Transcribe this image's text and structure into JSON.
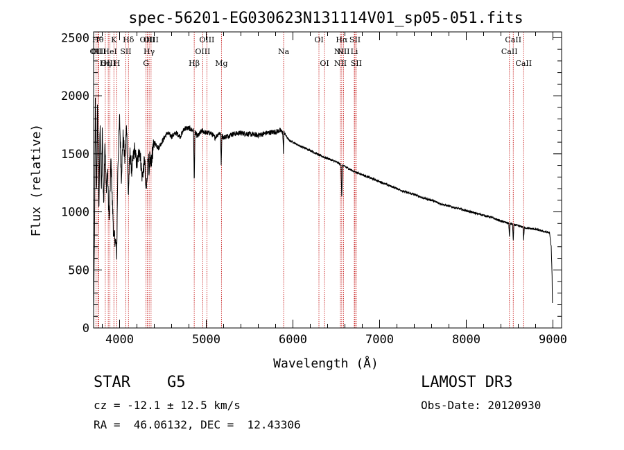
{
  "chart_data": {
    "type": "line",
    "title": "spec-56201-EG030623N131114V01_sp05-051.fits",
    "xlabel": "Wavelength (Å)",
    "ylabel": "Flux (relative)",
    "xlim": [
      3700,
      9100
    ],
    "ylim": [
      0,
      2550
    ],
    "xticks": [
      4000,
      5000,
      6000,
      7000,
      8000,
      9000
    ],
    "yticks": [
      0,
      500,
      1000,
      1500,
      2000,
      2500
    ],
    "grid": false,
    "series": [
      {
        "name": "spectrum",
        "profile": [
          [
            3700,
            150
          ],
          [
            3710,
            750
          ],
          [
            3720,
            1950
          ],
          [
            3735,
            1100
          ],
          [
            3745,
            1980
          ],
          [
            3760,
            1000
          ],
          [
            3775,
            1750
          ],
          [
            3790,
            1150
          ],
          [
            3800,
            1700
          ],
          [
            3815,
            1050
          ],
          [
            3830,
            1620
          ],
          [
            3845,
            1200
          ],
          [
            3860,
            1350
          ],
          [
            3880,
            900
          ],
          [
            3900,
            1450
          ],
          [
            3915,
            1100
          ],
          [
            3930,
            850
          ],
          [
            3950,
            750
          ],
          [
            3965,
            700
          ],
          [
            3980,
            1400
          ],
          [
            4000,
            1800
          ],
          [
            4020,
            1300
          ],
          [
            4040,
            1650
          ],
          [
            4060,
            1450
          ],
          [
            4080,
            1750
          ],
          [
            4100,
            1200
          ],
          [
            4120,
            1500
          ],
          [
            4140,
            1350
          ],
          [
            4170,
            1550
          ],
          [
            4200,
            1400
          ],
          [
            4230,
            1550
          ],
          [
            4260,
            1300
          ],
          [
            4290,
            1450
          ],
          [
            4310,
            1200
          ],
          [
            4330,
            1500
          ],
          [
            4360,
            1420
          ],
          [
            4400,
            1600
          ],
          [
            4450,
            1550
          ],
          [
            4500,
            1620
          ],
          [
            4550,
            1680
          ],
          [
            4600,
            1650
          ],
          [
            4650,
            1680
          ],
          [
            4700,
            1650
          ],
          [
            4750,
            1720
          ],
          [
            4800,
            1720
          ],
          [
            4850,
            1700
          ],
          [
            4900,
            1650
          ],
          [
            4950,
            1700
          ],
          [
            5000,
            1680
          ],
          [
            5050,
            1680
          ],
          [
            5100,
            1640
          ],
          [
            5150,
            1680
          ],
          [
            5200,
            1640
          ],
          [
            5300,
            1670
          ],
          [
            5400,
            1680
          ],
          [
            5500,
            1670
          ],
          [
            5600,
            1660
          ],
          [
            5700,
            1680
          ],
          [
            5800,
            1690
          ],
          [
            5850,
            1700
          ],
          [
            5900,
            1680
          ],
          [
            5950,
            1620
          ],
          [
            6000,
            1600
          ],
          [
            6100,
            1560
          ],
          [
            6200,
            1530
          ],
          [
            6300,
            1490
          ],
          [
            6400,
            1460
          ],
          [
            6500,
            1430
          ],
          [
            6600,
            1390
          ],
          [
            6700,
            1350
          ],
          [
            6800,
            1320
          ],
          [
            6900,
            1290
          ],
          [
            7000,
            1260
          ],
          [
            7100,
            1230
          ],
          [
            7200,
            1200
          ],
          [
            7300,
            1170
          ],
          [
            7400,
            1150
          ],
          [
            7500,
            1120
          ],
          [
            7600,
            1100
          ],
          [
            7700,
            1070
          ],
          [
            7800,
            1050
          ],
          [
            7900,
            1030
          ],
          [
            8000,
            1010
          ],
          [
            8100,
            990
          ],
          [
            8200,
            970
          ],
          [
            8300,
            950
          ],
          [
            8400,
            920
          ],
          [
            8500,
            900
          ],
          [
            8600,
            880
          ],
          [
            8700,
            860
          ],
          [
            8800,
            850
          ],
          [
            8900,
            830
          ],
          [
            8960,
            820
          ],
          [
            8980,
            700
          ],
          [
            8990,
            450
          ],
          [
            8995,
            150
          ]
        ],
        "absorption_dips": [
          {
            "wavelength": 3934,
            "flux": 750
          },
          {
            "wavelength": 3968,
            "flux": 700
          },
          {
            "wavelength": 4101,
            "flux": 1150
          },
          {
            "wavelength": 4300,
            "flux": 1180
          },
          {
            "wavelength": 4340,
            "flux": 1250
          },
          {
            "wavelength": 4861,
            "flux": 1230
          },
          {
            "wavelength": 5172,
            "flux": 1400
          },
          {
            "wavelength": 5890,
            "flux": 1520
          },
          {
            "wavelength": 6563,
            "flux": 1100
          },
          {
            "wavelength": 8498,
            "flux": 780
          },
          {
            "wavelength": 8542,
            "flux": 750
          },
          {
            "wavelength": 8662,
            "flux": 760
          }
        ]
      }
    ],
    "line_markers": [
      {
        "label": "OII",
        "wavelength": 3727,
        "row": 2
      },
      {
        "label": "Hθ",
        "wavelength": 3750,
        "row": 1
      },
      {
        "label": "OIII",
        "wavelength": 3760,
        "row": 2
      },
      {
        "label": "Hη",
        "wavelength": 3835,
        "row": 3
      },
      {
        "label": "OIII",
        "wavelength": 3869,
        "row": 3
      },
      {
        "label": "HeI",
        "wavelength": 3889,
        "row": 2
      },
      {
        "label": "K",
        "wavelength": 3934,
        "row": 1
      },
      {
        "label": "H",
        "wavelength": 3968,
        "row": 3
      },
      {
        "label": "SII",
        "wavelength": 4072,
        "row": 2
      },
      {
        "label": "Hδ",
        "wavelength": 4102,
        "row": 1
      },
      {
        "label": "G",
        "wavelength": 4305,
        "row": 3
      },
      {
        "label": "OIII",
        "wavelength": 4320,
        "row": 1
      },
      {
        "label": "Hγ",
        "wavelength": 4341,
        "row": 2
      },
      {
        "label": "OIII",
        "wavelength": 4363,
        "row": 1
      },
      {
        "label": "Hβ",
        "wavelength": 4861,
        "row": 3
      },
      {
        "label": "OIII",
        "wavelength": 4959,
        "row": 2
      },
      {
        "label": "OIII",
        "wavelength": 5007,
        "row": 1
      },
      {
        "label": "Mg",
        "wavelength": 5175,
        "row": 3
      },
      {
        "label": "Na",
        "wavelength": 5893,
        "row": 2
      },
      {
        "label": "OI",
        "wavelength": 6300,
        "row": 1
      },
      {
        "label": "OI",
        "wavelength": 6364,
        "row": 3
      },
      {
        "label": "NII",
        "wavelength": 6548,
        "row": 2
      },
      {
        "label": "NII",
        "wavelength": 6548,
        "row": 3
      },
      {
        "label": "Hα",
        "wavelength": 6563,
        "row": 1
      },
      {
        "label": "NII",
        "wavelength": 6583,
        "row": 2
      },
      {
        "label": "Li",
        "wavelength": 6708,
        "row": 2
      },
      {
        "label": "SII",
        "wavelength": 6716,
        "row": 1
      },
      {
        "label": "SII",
        "wavelength": 6731,
        "row": 3
      },
      {
        "label": "CaII",
        "wavelength": 8498,
        "row": 2
      },
      {
        "label": "CaII",
        "wavelength": 8542,
        "row": 1
      },
      {
        "label": "CaII",
        "wavelength": 8662,
        "row": 3
      }
    ]
  },
  "info": {
    "class_label": "STAR",
    "subclass_label": "G5",
    "survey": "LAMOST DR3",
    "redshift_text": "cz = -12.1 ± 12.5 km/s",
    "obs_date_text": "Obs-Date: 20120930",
    "coords_text": "RA =  46.06132, DEC =  12.43306"
  }
}
